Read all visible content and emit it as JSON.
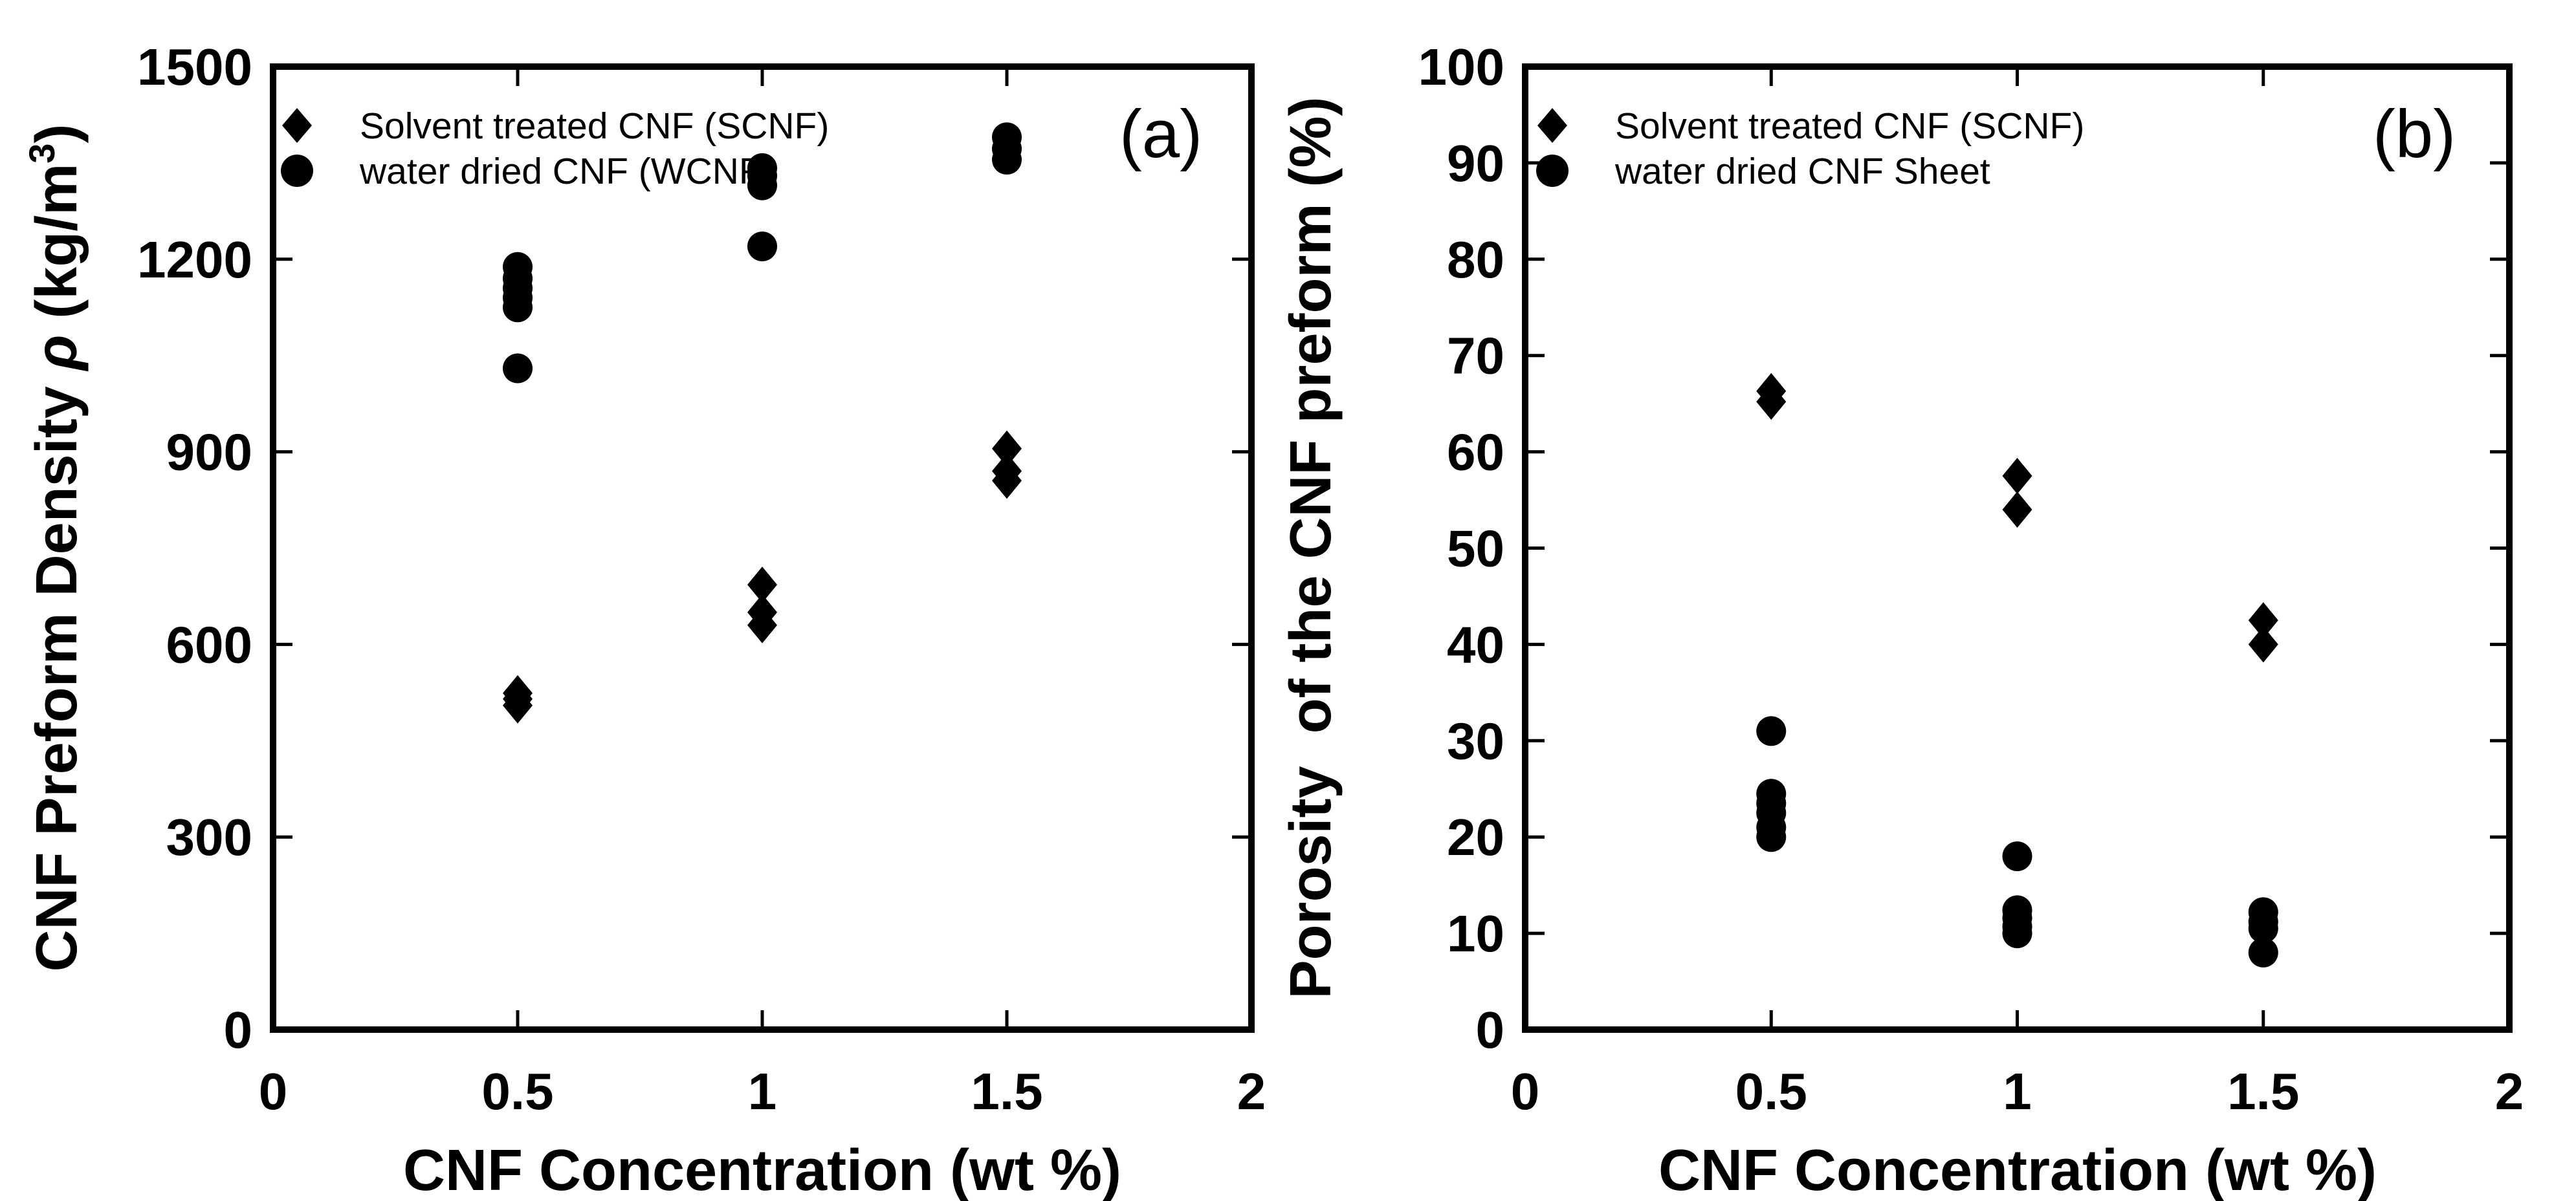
{
  "figure": {
    "background": "#ffffff",
    "ink_color": "#000000",
    "marker_color": "#000000"
  },
  "chart_data": [
    {
      "type": "scatter",
      "panel_label": "(a)",
      "xlabel": "CNF Concentration (wt %)",
      "ylabel": "CNF Preform Density ρ (kg/m3)",
      "ylabel_parts": [
        {
          "t": "CNF Preform Density "
        },
        {
          "t": "ρ",
          "style": "italic"
        },
        {
          "t": " (kg/m"
        },
        {
          "t": "3",
          "sup": true
        },
        {
          "t": ")"
        }
      ],
      "xlim": [
        0,
        2
      ],
      "ylim": [
        0,
        1500
      ],
      "xticks": [
        0,
        0.5,
        1,
        1.5,
        2
      ],
      "xtick_labels": [
        "0",
        "0.5",
        "1",
        "1.5",
        "2"
      ],
      "yticks": [
        0,
        300,
        600,
        900,
        1200,
        1500
      ],
      "ytick_labels": [
        "0",
        "300",
        "600",
        "900",
        "1200",
        "1500"
      ],
      "grid": false,
      "legend_position": "upper-left",
      "legend": [
        {
          "marker": "diamond",
          "label": "Solvent treated CNF (SCNF)"
        },
        {
          "marker": "circle",
          "label": "water dried CNF (WCNF)"
        }
      ],
      "series": [
        {
          "name": "Solvent treated CNF (SCNF)",
          "marker": "diamond",
          "points": [
            [
              0.5,
              505
            ],
            [
              0.5,
              515
            ],
            [
              0.5,
              524
            ],
            [
              1,
              630
            ],
            [
              1,
              650
            ],
            [
              1,
              693
            ],
            [
              1.5,
              855
            ],
            [
              1.5,
              870
            ],
            [
              1.5,
              905
            ]
          ]
        },
        {
          "name": "water dried CNF (WCNF)",
          "marker": "circle",
          "points": [
            [
              0.5,
              1030
            ],
            [
              0.5,
              1125
            ],
            [
              0.5,
              1140
            ],
            [
              0.5,
              1155
            ],
            [
              0.5,
              1170
            ],
            [
              0.5,
              1188
            ],
            [
              1,
              1220
            ],
            [
              1,
              1315
            ],
            [
              1,
              1330
            ],
            [
              1,
              1342
            ],
            [
              1.5,
              1355
            ],
            [
              1.5,
              1372
            ],
            [
              1.5,
              1390
            ]
          ]
        }
      ]
    },
    {
      "type": "scatter",
      "panel_label": "(b)",
      "xlabel": "CNF Concentration (wt %)",
      "ylabel": "Porosity  of the CNF preform (%)",
      "ylabel_parts": [
        {
          "t": "Porosity  of the CNF preform (%)"
        }
      ],
      "xlim": [
        0,
        2
      ],
      "ylim": [
        0,
        100
      ],
      "xticks": [
        0,
        0.5,
        1,
        1.5,
        2
      ],
      "xtick_labels": [
        "0",
        "0.5",
        "1",
        "1.5",
        "2"
      ],
      "yticks": [
        0,
        10,
        20,
        30,
        40,
        50,
        60,
        70,
        80,
        90,
        100
      ],
      "ytick_labels": [
        "0",
        "10",
        "20",
        "30",
        "40",
        "50",
        "60",
        "70",
        "80",
        "90",
        "100"
      ],
      "grid": false,
      "legend_position": "upper-left",
      "legend": [
        {
          "marker": "diamond",
          "label": "Solvent treated CNF (SCNF)"
        },
        {
          "marker": "circle",
          "label": "water dried CNF Sheet"
        }
      ],
      "series": [
        {
          "name": "Solvent treated CNF (SCNF)",
          "marker": "diamond",
          "points": [
            [
              0.5,
              65.2
            ],
            [
              0.5,
              66.3
            ],
            [
              1,
              54
            ],
            [
              1,
              57.5
            ],
            [
              1.5,
              40
            ],
            [
              1.5,
              42.5
            ]
          ]
        },
        {
          "name": "water dried CNF Sheet",
          "marker": "circle",
          "points": [
            [
              0.5,
              20
            ],
            [
              0.5,
              21
            ],
            [
              0.5,
              22.5
            ],
            [
              0.5,
              23.5
            ],
            [
              0.5,
              24.5
            ],
            [
              0.5,
              31
            ],
            [
              1,
              10
            ],
            [
              1,
              10.7
            ],
            [
              1,
              11.6
            ],
            [
              1,
              12.4
            ],
            [
              1,
              18
            ],
            [
              1.5,
              8
            ],
            [
              1.5,
              10.5
            ],
            [
              1.5,
              11.2
            ],
            [
              1.5,
              12.2
            ]
          ]
        }
      ]
    }
  ]
}
